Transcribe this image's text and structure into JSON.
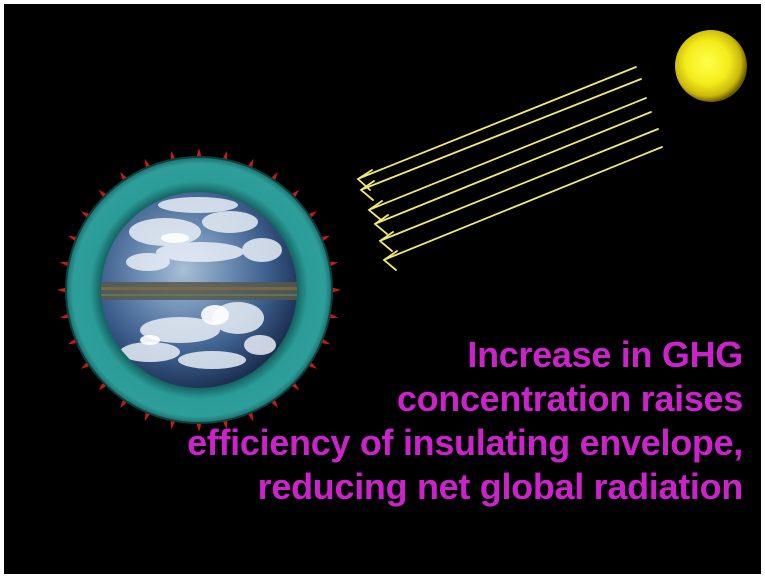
{
  "caption": {
    "lines": [
      "Increase in GHG",
      "concentration raises",
      "efficiency of insulating envelope,",
      "reducing net global radiation"
    ]
  },
  "icons": {
    "sun": "sun-icon",
    "earth": "earth-globe-icon",
    "atmosphere": "atmosphere-envelope",
    "sunlight": "sunlight-ray-arrows",
    "radiation": "outgoing-radiation-ticks"
  },
  "colors": {
    "background": "#000000",
    "caption": "#cc22cc",
    "ray": "#f2ea70",
    "tick": "#cc1a10",
    "atmosphere": "#2b9c98",
    "sun": "#f4ec1a"
  }
}
